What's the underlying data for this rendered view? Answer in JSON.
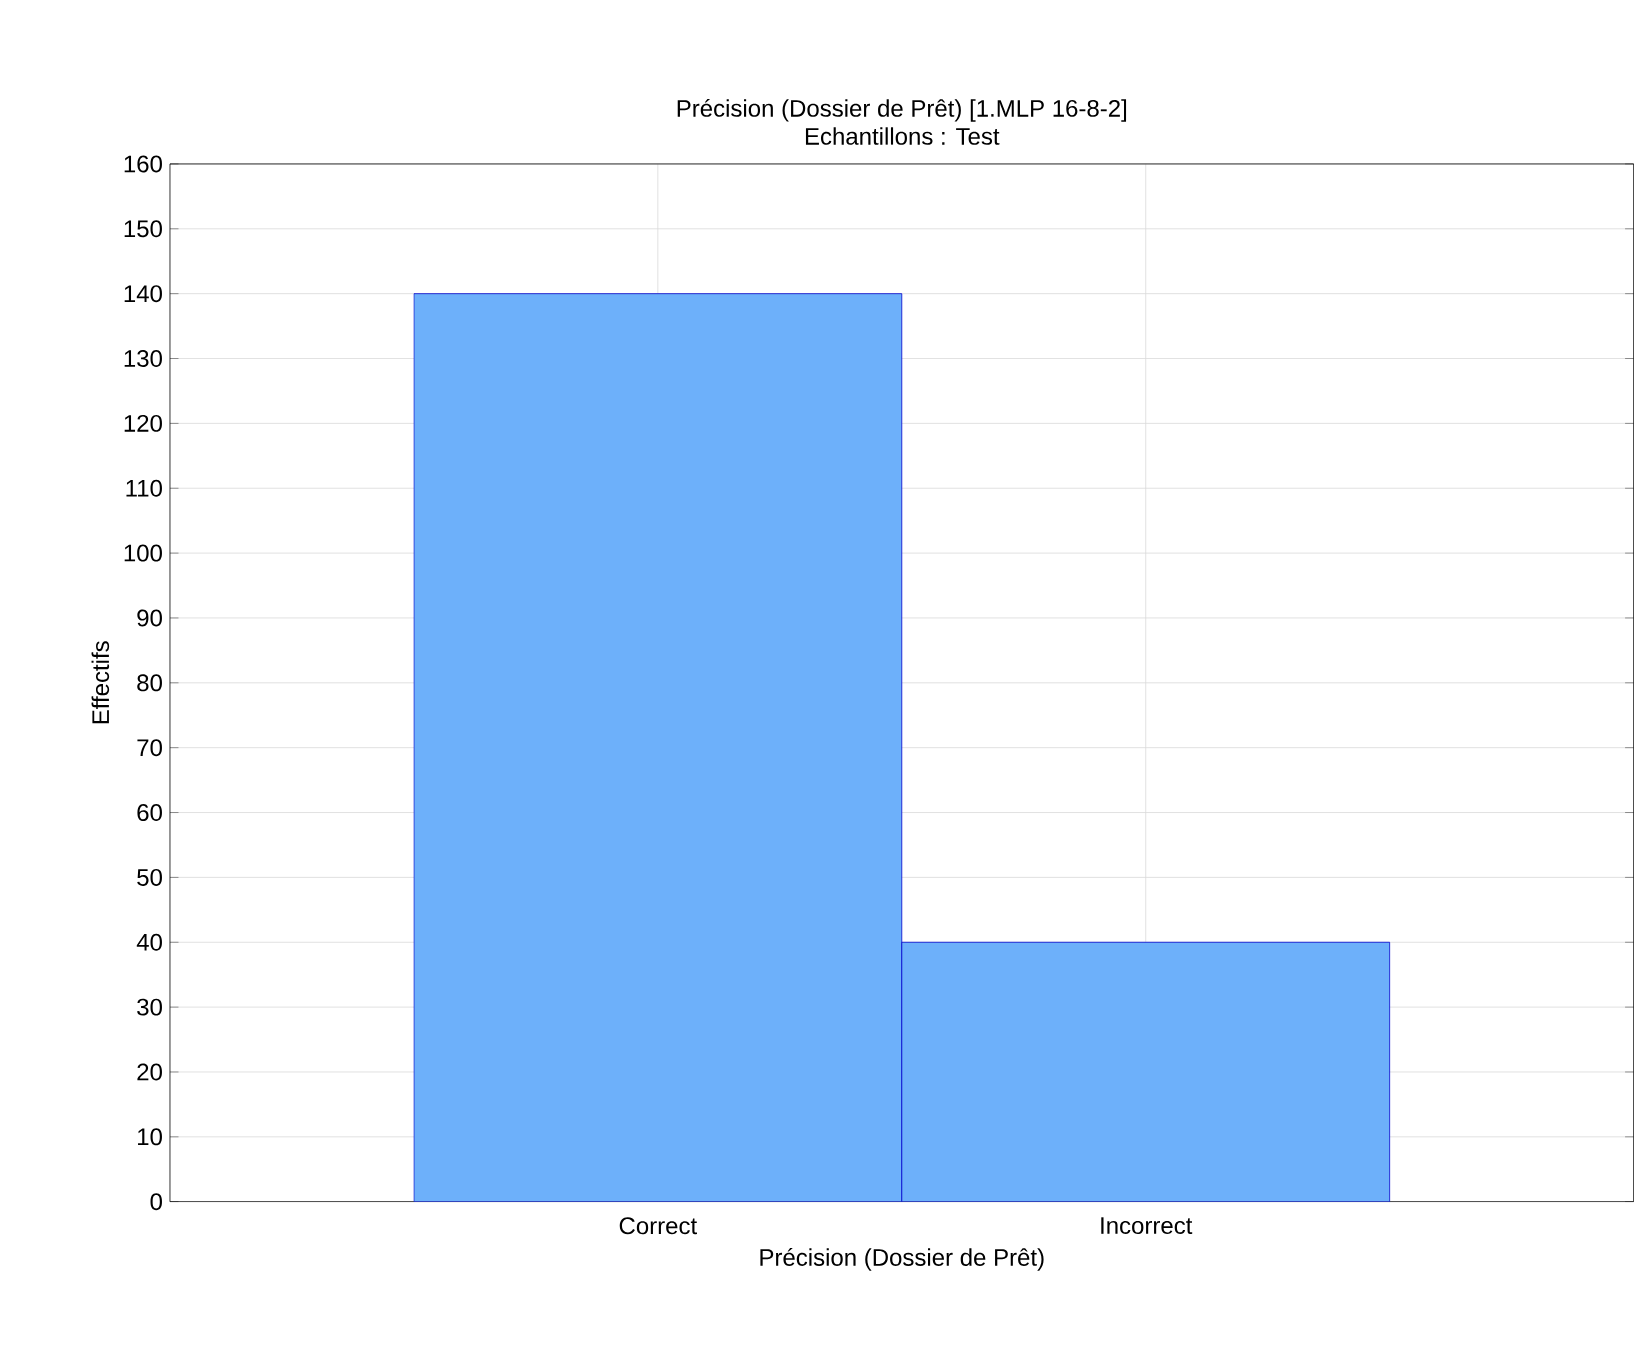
{
  "chart_data": {
    "type": "bar",
    "title": "Précision (Dossier de Prêt) [1.MLP 16-8-2]",
    "subtitle": "Echantillons : Test",
    "categories": [
      "Correct",
      "Incorrect"
    ],
    "values": [
      140,
      40
    ],
    "color": "#6db0fa",
    "xlabel": "Précision (Dossier de Prêt)",
    "ylabel": "Effectifs",
    "ylim": [
      0,
      160
    ],
    "yticks": [
      0,
      10,
      20,
      30,
      40,
      50,
      60,
      70,
      80,
      90,
      100,
      110,
      120,
      130,
      140,
      150,
      160
    ],
    "grid": true
  }
}
